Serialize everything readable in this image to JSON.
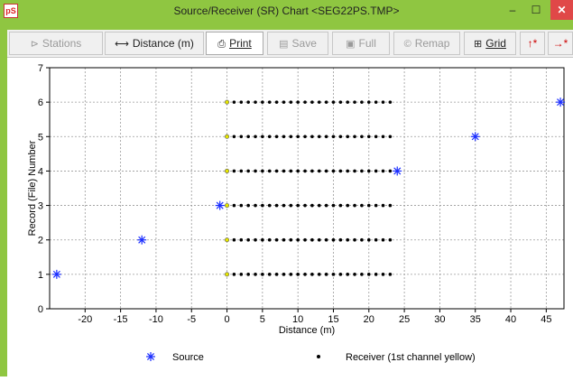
{
  "window": {
    "title": "Source/Receiver (SR) Chart <SEG22PS.TMP>",
    "app_icon": "pS",
    "minimize": "–",
    "maximize": "☐",
    "close": "✕"
  },
  "toolbar": {
    "stations": "Stations",
    "distance": "Distance (m)",
    "print": "Print",
    "save": "Save",
    "full": "Full",
    "remap": "Remap",
    "grid": "Grid",
    "up_arrow": "↑*",
    "right_arrow": "→*"
  },
  "chart_data": {
    "type": "scatter",
    "xlabel": "Distance (m)",
    "ylabel": "Record (File) Number",
    "xlim": [
      -25,
      47.5
    ],
    "ylim": [
      0,
      7
    ],
    "xticks": [
      -20,
      -15,
      -10,
      -5,
      0,
      5,
      10,
      15,
      20,
      25,
      30,
      35,
      40,
      45
    ],
    "yticks": [
      0,
      1,
      2,
      3,
      4,
      5,
      6,
      7
    ],
    "grid": true,
    "legend_position": "bottom",
    "series": [
      {
        "name": "Source",
        "marker": "asterisk",
        "color": "#1a2dff",
        "x": [
          -24,
          -12,
          -1,
          24,
          35,
          47
        ],
        "y": [
          1,
          2,
          3,
          4,
          5,
          6
        ]
      },
      {
        "name": "Receiver (1st channel yellow)",
        "marker": "dot",
        "color": "#000000",
        "first_channel_color": "#e6e600",
        "records": [
          1,
          2,
          3,
          4,
          5,
          6
        ],
        "x_start": 0,
        "x_end": 23,
        "x_step": 1
      }
    ]
  }
}
